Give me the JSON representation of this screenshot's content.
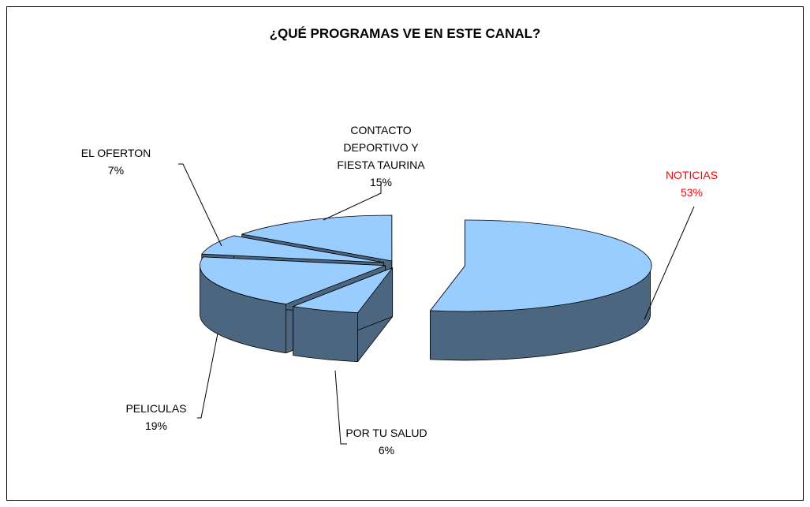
{
  "chart_data": {
    "type": "pie3d",
    "title": "¿QUÉ PROGRAMAS VE EN ESTE CANAL?",
    "categories": [
      "NOTICIAS",
      "POR TU SALUD",
      "PELICULAS",
      "EL OFERTON",
      "CONTACTO DEPORTIVO Y FIESTA TAURINA"
    ],
    "values": [
      53,
      6,
      19,
      7,
      15
    ],
    "value_labels": [
      "53%",
      "6%",
      "19%",
      "7%",
      "15%"
    ],
    "color": "#99ccff",
    "side_color": "#4d6680",
    "label_colors": [
      "#ff0000",
      "#000000",
      "#000000",
      "#000000",
      "#000000"
    ]
  }
}
